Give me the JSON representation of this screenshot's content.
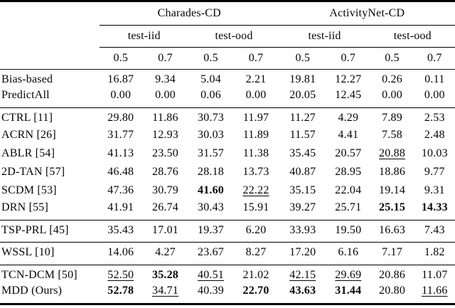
{
  "page": {
    "background": "#ffffff",
    "text_color": "#050505",
    "rule_color": "#000000"
  },
  "table": {
    "dataset_groups": [
      {
        "label": "Charades-CD"
      },
      {
        "label": "ActivityNet-CD"
      }
    ],
    "split_headers": [
      "test-iid",
      "test-ood",
      "test-iid",
      "test-ood"
    ],
    "iou_thresholds": [
      "0.5",
      "0.7",
      "0.5",
      "0.7",
      "0.5",
      "0.7",
      "0.5",
      "0.7"
    ],
    "row_groups": [
      {
        "rows": [
          {
            "label": "Bias-based",
            "values": [
              "16.87",
              "9.34",
              "5.04",
              "2.21",
              "19.81",
              "12.27",
              "0.26",
              "0.11"
            ],
            "bold": [],
            "underline": []
          },
          {
            "label": "PredictAll",
            "values": [
              "0.00",
              "0.00",
              "0.06",
              "0.00",
              "20.05",
              "12.45",
              "0.00",
              "0.00"
            ],
            "bold": [],
            "underline": []
          }
        ]
      },
      {
        "rows": [
          {
            "label": "CTRL [11]",
            "values": [
              "29.80",
              "11.86",
              "30.73",
              "11.97",
              "11.27",
              "4.29",
              "7.89",
              "2.53"
            ],
            "bold": [],
            "underline": []
          },
          {
            "label": "ACRN [26]",
            "values": [
              "31.77",
              "12.93",
              "30.03",
              "11.89",
              "11.57",
              "4.41",
              "7.58",
              "2.48"
            ],
            "bold": [],
            "underline": []
          },
          {
            "label": "ABLR [54]",
            "values": [
              "41.13",
              "23.50",
              "31.57",
              "11.38",
              "35.45",
              "20.57",
              "20.88",
              "10.03"
            ],
            "bold": [],
            "underline": [
              6
            ]
          },
          {
            "label": "2D-TAN [57]",
            "values": [
              "46.48",
              "28.76",
              "28.18",
              "13.73",
              "40.87",
              "28.95",
              "18.86",
              "9.77"
            ],
            "bold": [],
            "underline": []
          },
          {
            "label": "SCDM [53]",
            "values": [
              "47.36",
              "30.79",
              "41.60",
              "22.22",
              "35.15",
              "22.04",
              "19.14",
              "9.31"
            ],
            "bold": [
              2
            ],
            "underline": [
              3
            ]
          },
          {
            "label": "DRN [55]",
            "values": [
              "41.91",
              "26.74",
              "30.43",
              "15.91",
              "39.27",
              "25.71",
              "25.15",
              "14.33"
            ],
            "bold": [
              6,
              7
            ],
            "underline": []
          }
        ]
      },
      {
        "rows": [
          {
            "label": "TSP-PRL [45]",
            "values": [
              "35.43",
              "17.01",
              "19.37",
              "6.20",
              "33.93",
              "19.50",
              "16.63",
              "7.43"
            ],
            "bold": [],
            "underline": []
          }
        ]
      },
      {
        "rows": [
          {
            "label": "WSSL [10]",
            "values": [
              "14.06",
              "4.27",
              "23.67",
              "8.27",
              "17.20",
              "6.16",
              "7.17",
              "1.82"
            ],
            "bold": [],
            "underline": []
          }
        ]
      },
      {
        "rows": [
          {
            "label": "TCN-DCM [50]",
            "values": [
              "52.50",
              "35.28",
              "40.51",
              "21.02",
              "42.15",
              "29.69",
              "20.86",
              "11.07"
            ],
            "bold": [
              1
            ],
            "underline": [
              0,
              2,
              4,
              5
            ]
          },
          {
            "label": "MDD (Ours)",
            "values": [
              "52.78",
              "34.71",
              "40.39",
              "22.70",
              "43.63",
              "31.44",
              "20.80",
              "11.66"
            ],
            "bold": [
              0,
              3,
              4,
              5
            ],
            "underline": [
              1,
              7
            ]
          }
        ]
      }
    ]
  }
}
